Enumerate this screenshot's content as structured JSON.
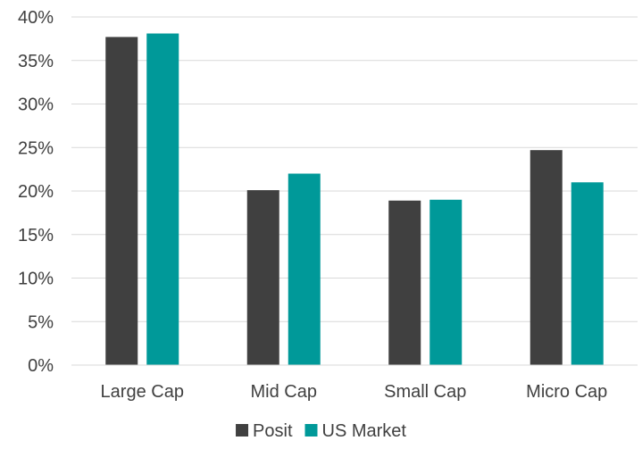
{
  "chart_data": {
    "type": "bar",
    "categories": [
      "Large Cap",
      "Mid Cap",
      "Small Cap",
      "Micro Cap"
    ],
    "series": [
      {
        "name": "Posit",
        "values": [
          37.7,
          20.1,
          18.9,
          24.7
        ],
        "color": "#404040"
      },
      {
        "name": "US Market",
        "values": [
          38.1,
          22.0,
          19.0,
          21.0
        ],
        "color": "#009999"
      }
    ],
    "yticks": [
      "0%",
      "5%",
      "10%",
      "15%",
      "20%",
      "25%",
      "30%",
      "35%",
      "40%"
    ],
    "ylim": [
      0,
      40
    ],
    "ytick_step": 5,
    "grid": true,
    "legend_position": "bottom"
  }
}
